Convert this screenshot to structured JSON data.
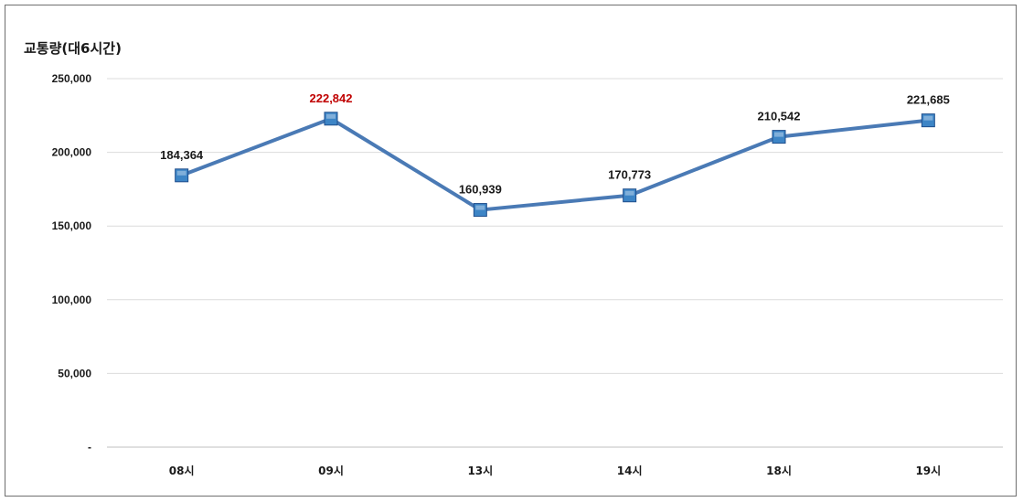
{
  "chart_data": {
    "type": "line",
    "title": "",
    "ylabel": "교통량(대6시간)",
    "xlabel": "",
    "categories": [
      "08시",
      "09시",
      "13시",
      "14시",
      "18시",
      "19시"
    ],
    "series": [
      {
        "values": [
          184364,
          222842,
          160939,
          170773,
          210542,
          221685
        ],
        "labels": [
          "184,364",
          "222,842",
          "160,939",
          "170,773",
          "210,542",
          "221,685"
        ],
        "color": "#4a7ab5",
        "marker": "square",
        "marker_color": "#3d85c6"
      }
    ],
    "highlight": {
      "index": 1,
      "color": "#c00000"
    },
    "label_color": "#1a1a1a",
    "ylim": [
      0,
      250000
    ],
    "yticks": [
      {
        "value": 0,
        "label": "-"
      },
      {
        "value": 50000,
        "label": "50,000"
      },
      {
        "value": 100000,
        "label": "100,000"
      },
      {
        "value": 150000,
        "label": "150,000"
      },
      {
        "value": 200000,
        "label": "200,000"
      },
      {
        "value": 250000,
        "label": "250,000"
      }
    ],
    "grid": true,
    "legend": "none"
  }
}
